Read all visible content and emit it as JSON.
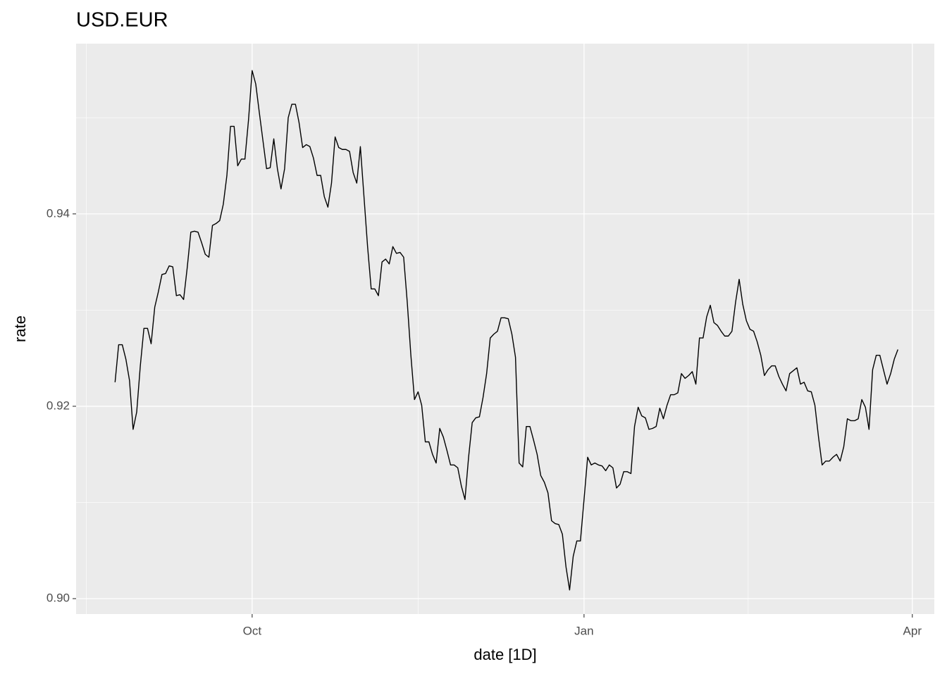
{
  "chart_data": {
    "type": "line",
    "title": "USD.EUR",
    "x_label": "date [1D]",
    "y_label": "rate",
    "x": [
      -38,
      -37,
      -36,
      -35,
      -34,
      -33,
      -32,
      -31,
      -30,
      -29,
      -28,
      -27,
      -26,
      -25,
      -24,
      -23,
      -22,
      -21,
      -20,
      -19,
      -18,
      -17,
      -16,
      -15,
      -14,
      -13,
      -12,
      -11,
      -10,
      -9,
      -8,
      -7,
      -6,
      -5,
      -4,
      -3,
      -2,
      -1,
      0,
      1,
      2,
      3,
      4,
      5,
      6,
      7,
      8,
      9,
      10,
      11,
      12,
      13,
      14,
      15,
      16,
      17,
      18,
      19,
      20,
      21,
      22,
      23,
      24,
      25,
      26,
      27,
      28,
      29,
      30,
      31,
      32,
      33,
      34,
      35,
      36,
      37,
      38,
      39,
      40,
      41,
      42,
      43,
      44,
      45,
      46,
      47,
      48,
      49,
      50,
      51,
      52,
      53,
      54,
      55,
      56,
      57,
      58,
      59,
      60,
      61,
      62,
      63,
      64,
      65,
      66,
      67,
      68,
      69,
      70,
      71,
      72,
      73,
      74,
      75,
      76,
      77,
      78,
      79,
      80,
      81,
      82,
      83,
      84,
      85,
      86,
      87,
      88,
      89,
      90,
      91,
      92,
      93,
      94,
      95,
      96,
      97,
      98,
      99,
      100,
      101,
      102,
      103,
      104,
      105,
      106,
      107,
      108,
      109,
      110,
      111,
      112,
      113,
      114,
      115,
      116,
      117,
      118,
      119,
      120,
      121,
      122,
      123,
      124,
      125,
      126,
      127,
      128,
      129,
      130,
      131,
      132,
      133,
      134,
      135,
      136,
      137,
      138,
      139,
      140,
      141,
      142,
      143,
      144,
      145,
      146,
      147,
      148,
      149,
      150,
      151,
      152,
      153,
      154,
      155,
      156,
      157,
      158,
      159,
      160,
      161,
      162,
      163,
      164,
      165,
      166,
      167,
      168,
      169,
      170,
      171,
      172,
      173,
      174,
      175,
      176,
      177,
      178,
      179
    ],
    "values": [
      0.9225,
      0.9264,
      0.9264,
      0.9249,
      0.9227,
      0.9176,
      0.9194,
      0.9242,
      0.9281,
      0.9281,
      0.9265,
      0.9303,
      0.9319,
      0.9337,
      0.9338,
      0.9346,
      0.9345,
      0.9315,
      0.9316,
      0.9311,
      0.9344,
      0.9381,
      0.9382,
      0.9381,
      0.937,
      0.9358,
      0.9355,
      0.9388,
      0.939,
      0.9393,
      0.941,
      0.944,
      0.9491,
      0.9491,
      0.945,
      0.9457,
      0.9457,
      0.9498,
      0.9549,
      0.9535,
      0.9505,
      0.9476,
      0.9447,
      0.9448,
      0.9478,
      0.9447,
      0.9426,
      0.9447,
      0.95,
      0.9514,
      0.9514,
      0.9495,
      0.9469,
      0.9472,
      0.947,
      0.9458,
      0.944,
      0.944,
      0.9418,
      0.9407,
      0.9432,
      0.948,
      0.9469,
      0.9467,
      0.9467,
      0.9465,
      0.9443,
      0.9432,
      0.947,
      0.9418,
      0.9366,
      0.9322,
      0.9322,
      0.9315,
      0.935,
      0.9353,
      0.9348,
      0.9366,
      0.9359,
      0.936,
      0.9355,
      0.9308,
      0.9253,
      0.9207,
      0.9215,
      0.9201,
      0.9163,
      0.9163,
      0.915,
      0.9141,
      0.9177,
      0.9168,
      0.9154,
      0.9139,
      0.9139,
      0.9136,
      0.9117,
      0.9103,
      0.9147,
      0.9183,
      0.9188,
      0.9189,
      0.9209,
      0.9234,
      0.9271,
      0.9275,
      0.9278,
      0.9292,
      0.9292,
      0.9291,
      0.9275,
      0.9251,
      0.9141,
      0.9137,
      0.9179,
      0.9179,
      0.9165,
      0.915,
      0.9128,
      0.9121,
      0.911,
      0.9081,
      0.9078,
      0.9077,
      0.9067,
      0.9033,
      0.9009,
      0.9044,
      0.906,
      0.906,
      0.9103,
      0.9147,
      0.9139,
      0.9141,
      0.9139,
      0.9138,
      0.9133,
      0.9139,
      0.9136,
      0.9115,
      0.9119,
      0.9132,
      0.9132,
      0.913,
      0.9179,
      0.9199,
      0.919,
      0.9188,
      0.9176,
      0.9177,
      0.9179,
      0.9198,
      0.9187,
      0.9201,
      0.9212,
      0.9212,
      0.9214,
      0.9234,
      0.9229,
      0.9232,
      0.9236,
      0.9223,
      0.9271,
      0.9271,
      0.9293,
      0.9305,
      0.9287,
      0.9284,
      0.9278,
      0.9273,
      0.9273,
      0.9278,
      0.9308,
      0.9332,
      0.9306,
      0.9289,
      0.928,
      0.9278,
      0.9267,
      0.9253,
      0.9232,
      0.9238,
      0.9242,
      0.9242,
      0.9231,
      0.9223,
      0.9216,
      0.9234,
      0.9237,
      0.924,
      0.9223,
      0.9225,
      0.9216,
      0.9215,
      0.9201,
      0.9168,
      0.9139,
      0.9143,
      0.9143,
      0.9147,
      0.915,
      0.9143,
      0.9158,
      0.9187,
      0.9185,
      0.9185,
      0.9187,
      0.9207,
      0.9199,
      0.9176,
      0.9238,
      0.9253,
      0.9253,
      0.9238,
      0.9223,
      0.9234,
      0.9249,
      0.9259
    ],
    "color": "#000000",
    "xlim": [
      -48.8,
      189.1
    ],
    "xticks": [
      {
        "value": 0,
        "label": "Oct"
      },
      {
        "value": 92,
        "label": "Jan"
      },
      {
        "value": 183,
        "label": "Apr"
      }
    ],
    "x_minor_grid": [
      -46,
      46,
      137.5
    ],
    "ylim": [
      0.8984,
      0.9577
    ],
    "yticks": [
      {
        "value": 0.9,
        "label": "0.90"
      },
      {
        "value": 0.92,
        "label": "0.92"
      },
      {
        "value": 0.94,
        "label": "0.94"
      }
    ],
    "y_minor_grid": [
      0.91,
      0.93,
      0.95
    ],
    "grid": true
  }
}
